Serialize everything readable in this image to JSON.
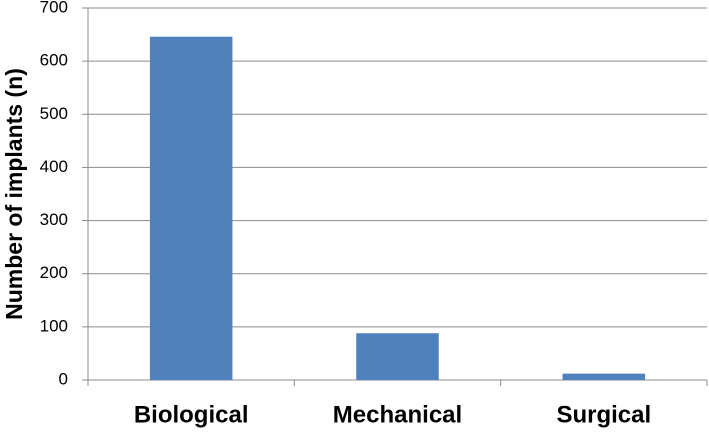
{
  "chart_data": {
    "type": "bar",
    "y_label": "Number of implants (n)",
    "categories": [
      "Biological",
      "Mechanical",
      "Surgical"
    ],
    "values": [
      646,
      88,
      12
    ],
    "color": "#4f81bd",
    "ylim": [
      0,
      700
    ],
    "yticks": [
      0,
      100,
      200,
      300,
      400,
      500,
      600,
      700
    ],
    "grid": true
  }
}
